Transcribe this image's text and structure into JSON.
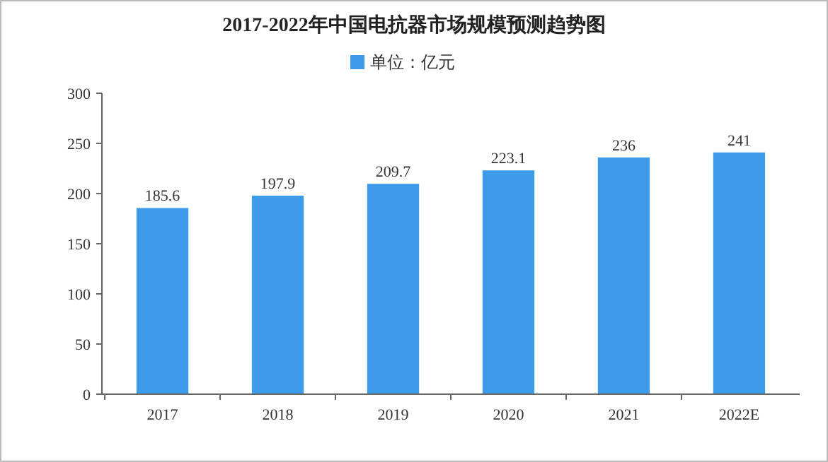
{
  "chart_data": {
    "type": "bar",
    "title": "2017-2022年中国电抗器市场规模预测趋势图",
    "categories": [
      "2017",
      "2018",
      "2019",
      "2020",
      "2021",
      "2022E"
    ],
    "series": [
      {
        "name": "单位：亿元",
        "color": "#3d9be9",
        "values": [
          185.6,
          197.9,
          209.7,
          223.1,
          236,
          241
        ]
      }
    ],
    "ylim": [
      0,
      300
    ],
    "yticks": [
      0,
      50,
      100,
      150,
      200,
      250,
      300
    ],
    "grid": false,
    "legend": "top",
    "data_labels": true
  }
}
